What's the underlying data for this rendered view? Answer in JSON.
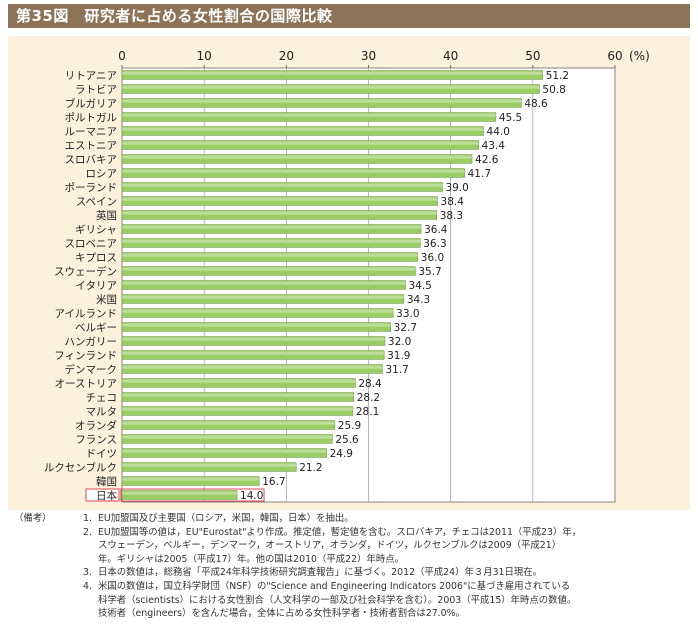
{
  "figure": {
    "title": "第35図　研究者に占める女性割合の国際比較",
    "unit": "(%)"
  },
  "chart_data": {
    "type": "bar",
    "orientation": "horizontal",
    "xlim": [
      0,
      60
    ],
    "ticks": [
      0,
      10,
      20,
      30,
      40,
      50,
      60
    ],
    "grid": true,
    "highlight": "日本",
    "bar_color": "#9acd64",
    "highlight_color": "#e0484f",
    "categories": [
      "リトアニア",
      "ラトビア",
      "ブルガリア",
      "ポルトガル",
      "ルーマニア",
      "エストニア",
      "スロバキア",
      "ロシア",
      "ポーランド",
      "スペイン",
      "英国",
      "ギリシャ",
      "スロベニア",
      "キプロス",
      "スウェーデン",
      "イタリア",
      "米国",
      "アイルランド",
      "ベルギー",
      "ハンガリー",
      "フィンランド",
      "デンマーク",
      "オーストリア",
      "チェコ",
      "マルタ",
      "オランダ",
      "フランス",
      "ドイツ",
      "ルクセンブルク",
      "韓国",
      "日本"
    ],
    "values": [
      51.2,
      50.8,
      48.6,
      45.5,
      44.0,
      43.4,
      42.6,
      41.7,
      39.0,
      38.4,
      38.3,
      36.4,
      36.3,
      36.0,
      35.7,
      34.5,
      34.3,
      33.0,
      32.7,
      32.0,
      31.9,
      31.7,
      28.4,
      28.2,
      28.1,
      25.9,
      25.6,
      24.9,
      21.2,
      16.7,
      14.0
    ],
    "value_labels": [
      "51.2",
      "50.8",
      "48.6",
      "45.5",
      "44.0",
      "43.4",
      "42.6",
      "41.7",
      "39.0",
      "38.4",
      "38.3",
      "36.4",
      "36.3",
      "36.0",
      "35.7",
      "34.5",
      "34.3",
      "33.0",
      "32.7",
      "32.0",
      "31.9",
      "31.7",
      "28.4",
      "28.2",
      "28.1",
      "25.9",
      "25.6",
      "24.9",
      "21.2",
      "16.7",
      "14.0"
    ]
  },
  "notes": {
    "label": "（備考）",
    "items": [
      {
        "num": "1.",
        "lines": [
          "EU加盟国及び主要国（ロシア，米国，韓国，日本）を抽出。"
        ]
      },
      {
        "num": "2.",
        "lines": [
          "EU加盟国等の値は，EU\"Eurostat\"より作成。推定値，暫定値を含む。スロバキア，チェコは2011（平成23）年，",
          "スウェーデン，ベルギー，デンマーク，オーストリア，オランダ，ドイツ，ルクセンブルクは2009（平成21）",
          "年。ギリシャは2005（平成17）年。他の国は2010（平成22）年時点。"
        ]
      },
      {
        "num": "3.",
        "lines": [
          "日本の数値は，総務省「平成24年科学技術研究調査報告」に基づく。2012（平成24）年３月31日現在。"
        ]
      },
      {
        "num": "4.",
        "lines": [
          "米国の数値は，国立科学財団（NSF）の\"Science and Engineering Indicators 2006\"に基づき雇用されている",
          "科学者（scientists）における女性割合（人文科学の一部及び社会科学を含む）。2003（平成15）年時点の数値。",
          "技術者（engineers）を含んだ場合，全体に占める女性科学者・技術者割合は27.0%。"
        ]
      }
    ]
  }
}
